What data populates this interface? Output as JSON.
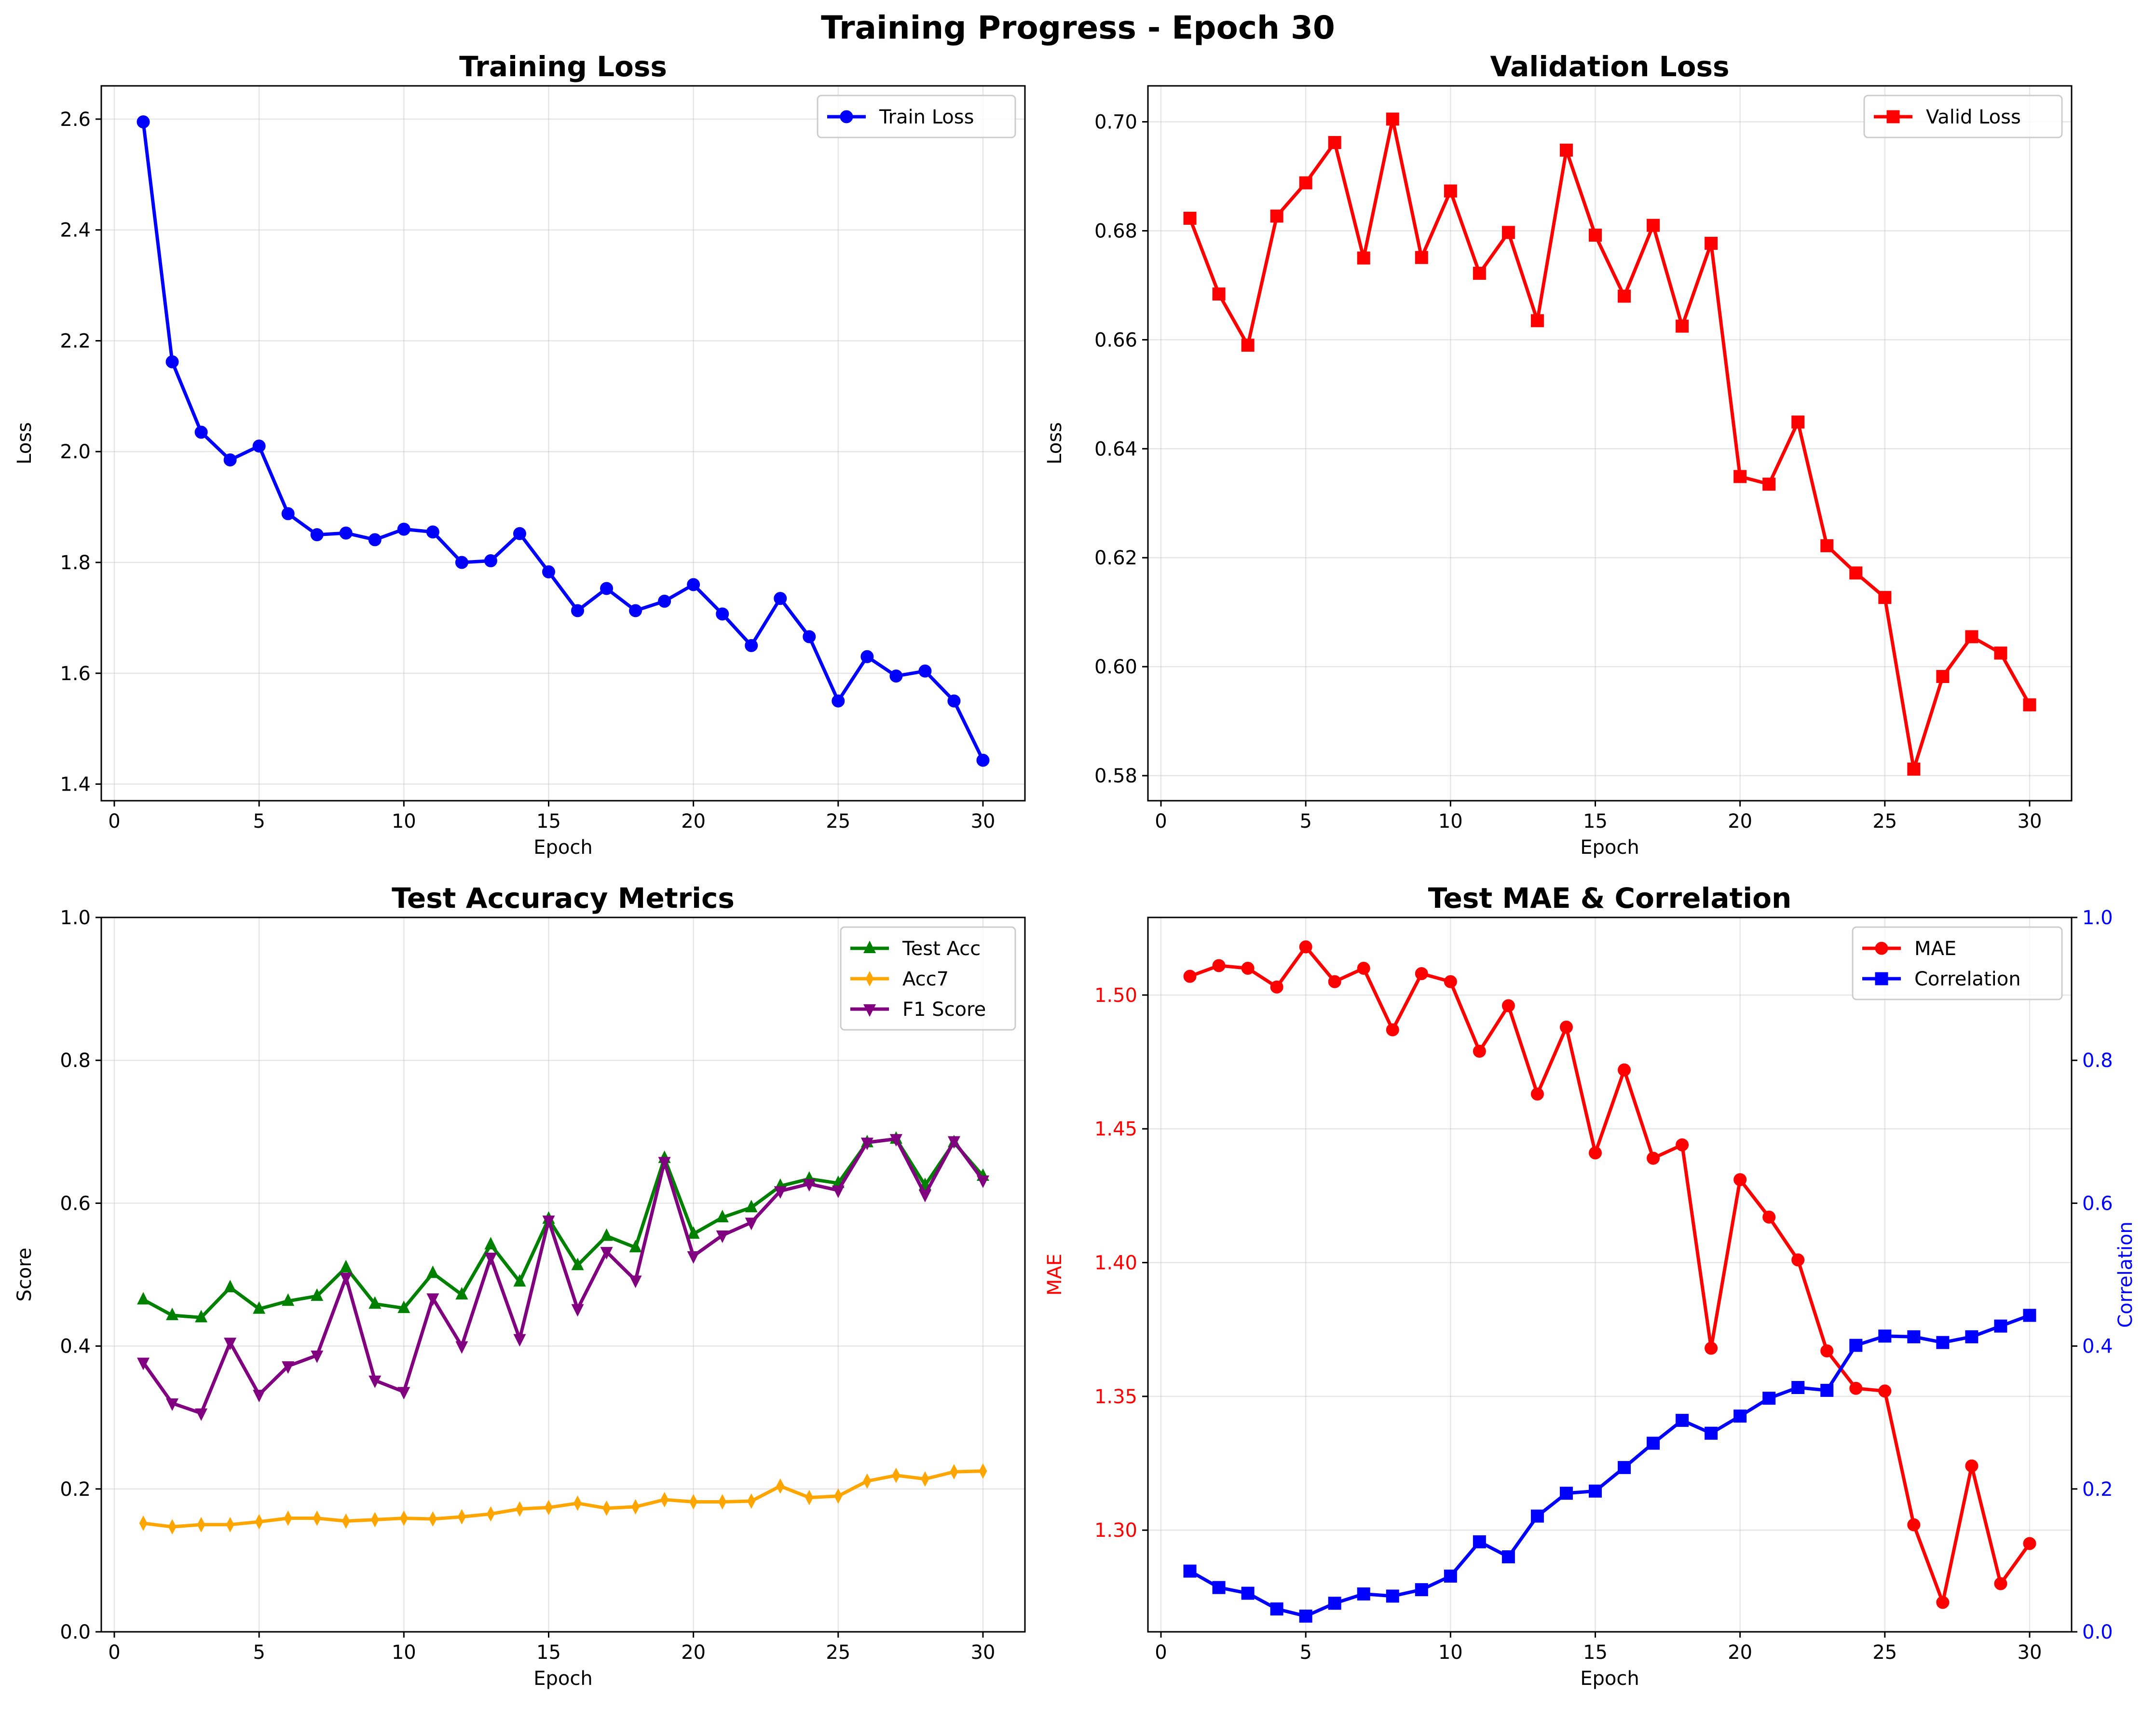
{
  "figure_title": "Training Progress - Epoch 30",
  "colors": {
    "train_loss": "#0000ff",
    "valid_loss": "#ff0000",
    "test_acc": "#008000",
    "acc7": "#ffa500",
    "f1": "#800080",
    "mae": "#ff0000",
    "correlation": "#0000ff"
  },
  "chart_data": [
    {
      "type": "line",
      "title": "Training Loss",
      "xlabel": "Epoch",
      "ylabel": "Loss",
      "xlim": [
        -0.45,
        31.45
      ],
      "ylim": [
        1.37,
        2.66
      ],
      "xticks": [
        0,
        5,
        10,
        15,
        20,
        25,
        30
      ],
      "yticks": [
        1.4,
        1.6,
        1.8,
        2.0,
        2.2,
        2.4,
        2.6
      ],
      "grid": true,
      "legend": "upper right",
      "x": [
        1,
        2,
        3,
        4,
        5,
        6,
        7,
        8,
        9,
        10,
        11,
        12,
        13,
        14,
        15,
        16,
        17,
        18,
        19,
        20,
        21,
        22,
        23,
        24,
        25,
        26,
        27,
        28,
        29,
        30
      ],
      "series": [
        {
          "name": "Train Loss",
          "marker": "circle",
          "color_key": "train_loss",
          "values": [
            2.595,
            2.162,
            2.035,
            1.985,
            2.01,
            1.888,
            1.85,
            1.853,
            1.841,
            1.86,
            1.855,
            1.8,
            1.803,
            1.852,
            1.783,
            1.713,
            1.753,
            1.713,
            1.73,
            1.76,
            1.707,
            1.65,
            1.735,
            1.666,
            1.55,
            1.63,
            1.595,
            1.604,
            1.55,
            1.443
          ]
        }
      ]
    },
    {
      "type": "line",
      "title": "Validation Loss",
      "xlabel": "Epoch",
      "ylabel": "Loss",
      "xlim": [
        -0.45,
        31.45
      ],
      "ylim": [
        0.5754,
        0.7066
      ],
      "xticks": [
        0,
        5,
        10,
        15,
        20,
        25,
        30
      ],
      "yticks": [
        0.58,
        0.6,
        0.62,
        0.64,
        0.66,
        0.68,
        0.7
      ],
      "grid": true,
      "legend": "upper right",
      "x": [
        1,
        2,
        3,
        4,
        5,
        6,
        7,
        8,
        9,
        10,
        11,
        12,
        13,
        14,
        15,
        16,
        17,
        18,
        19,
        20,
        21,
        22,
        23,
        24,
        25,
        26,
        27,
        28,
        29,
        30
      ],
      "series": [
        {
          "name": "Valid Loss",
          "marker": "square",
          "color_key": "valid_loss",
          "values": [
            0.6823,
            0.6684,
            0.659,
            0.6827,
            0.6888,
            0.6962,
            0.675,
            0.7005,
            0.6751,
            0.6873,
            0.6722,
            0.6797,
            0.6635,
            0.6948,
            0.6792,
            0.668,
            0.681,
            0.6625,
            0.6777,
            0.6349,
            0.6335,
            0.6449,
            0.6222,
            0.6172,
            0.6127,
            0.5812,
            0.5982,
            0.6055,
            0.6025,
            0.593
          ]
        }
      ]
    },
    {
      "type": "line",
      "title": "Test Accuracy Metrics",
      "xlabel": "Epoch",
      "ylabel": "Score",
      "xlim": [
        -0.45,
        31.45
      ],
      "ylim": [
        0,
        1
      ],
      "xticks": [
        0,
        5,
        10,
        15,
        20,
        25,
        30
      ],
      "yticks": [
        0.0,
        0.2,
        0.4,
        0.6,
        0.8,
        1.0
      ],
      "grid": true,
      "legend": "upper right",
      "x": [
        1,
        2,
        3,
        4,
        5,
        6,
        7,
        8,
        9,
        10,
        11,
        12,
        13,
        14,
        15,
        16,
        17,
        18,
        19,
        20,
        21,
        22,
        23,
        24,
        25,
        26,
        27,
        28,
        29,
        30
      ],
      "series": [
        {
          "name": "Test Acc",
          "marker": "triangle-up",
          "color_key": "test_acc",
          "values": [
            0.465,
            0.443,
            0.44,
            0.482,
            0.452,
            0.463,
            0.47,
            0.51,
            0.459,
            0.453,
            0.502,
            0.472,
            0.542,
            0.49,
            0.578,
            0.513,
            0.554,
            0.538,
            0.663,
            0.557,
            0.58,
            0.594,
            0.624,
            0.634,
            0.628,
            0.685,
            0.69,
            0.625,
            0.685,
            0.638
          ]
        },
        {
          "name": "Acc7",
          "marker": "thin-diamond",
          "color_key": "acc7",
          "values": [
            0.152,
            0.147,
            0.15,
            0.15,
            0.154,
            0.159,
            0.159,
            0.155,
            0.157,
            0.159,
            0.158,
            0.161,
            0.165,
            0.172,
            0.174,
            0.18,
            0.173,
            0.175,
            0.185,
            0.182,
            0.182,
            0.183,
            0.204,
            0.188,
            0.19,
            0.211,
            0.219,
            0.214,
            0.224,
            0.225
          ]
        },
        {
          "name": "F1 Score",
          "marker": "triangle-down",
          "color_key": "f1",
          "values": [
            0.377,
            0.32,
            0.306,
            0.405,
            0.332,
            0.372,
            0.387,
            0.496,
            0.352,
            0.336,
            0.467,
            0.4,
            0.524,
            0.41,
            0.576,
            0.452,
            0.532,
            0.492,
            0.658,
            0.526,
            0.555,
            0.573,
            0.617,
            0.627,
            0.618,
            0.685,
            0.69,
            0.612,
            0.687,
            0.632
          ]
        }
      ]
    },
    {
      "type": "line",
      "title": "Test MAE & Correlation",
      "xlabel": "Epoch",
      "ylabel": "MAE",
      "ylabel_right": "Correlation",
      "xlim": [
        -0.45,
        31.45
      ],
      "ylim": [
        1.262,
        1.529
      ],
      "ylim_right": [
        0,
        1
      ],
      "xticks": [
        0,
        5,
        10,
        15,
        20,
        25,
        30
      ],
      "yticks": [
        1.3,
        1.35,
        1.4,
        1.45,
        1.5
      ],
      "yticks_right": [
        0.0,
        0.2,
        0.4,
        0.6,
        0.8,
        1.0
      ],
      "grid": true,
      "legend": "upper right",
      "x": [
        1,
        2,
        3,
        4,
        5,
        6,
        7,
        8,
        9,
        10,
        11,
        12,
        13,
        14,
        15,
        16,
        17,
        18,
        19,
        20,
        21,
        22,
        23,
        24,
        25,
        26,
        27,
        28,
        29,
        30
      ],
      "series": [
        {
          "name": "MAE",
          "marker": "circle",
          "color_key": "mae",
          "axis": "left",
          "values": [
            1.507,
            1.511,
            1.51,
            1.503,
            1.518,
            1.505,
            1.51,
            1.487,
            1.508,
            1.505,
            1.479,
            1.496,
            1.463,
            1.488,
            1.441,
            1.472,
            1.439,
            1.444,
            1.368,
            1.431,
            1.417,
            1.401,
            1.367,
            1.353,
            1.352,
            1.302,
            1.273,
            1.324,
            1.28,
            1.295
          ]
        },
        {
          "name": "Correlation",
          "marker": "square",
          "color_key": "correlation",
          "axis": "right",
          "values": [
            0.085,
            0.062,
            0.054,
            0.032,
            0.022,
            0.04,
            0.053,
            0.05,
            0.059,
            0.078,
            0.126,
            0.105,
            0.162,
            0.194,
            0.197,
            0.23,
            0.264,
            0.296,
            0.278,
            0.302,
            0.327,
            0.342,
            0.338,
            0.401,
            0.414,
            0.413,
            0.405,
            0.413,
            0.428,
            0.443
          ]
        }
      ]
    }
  ]
}
